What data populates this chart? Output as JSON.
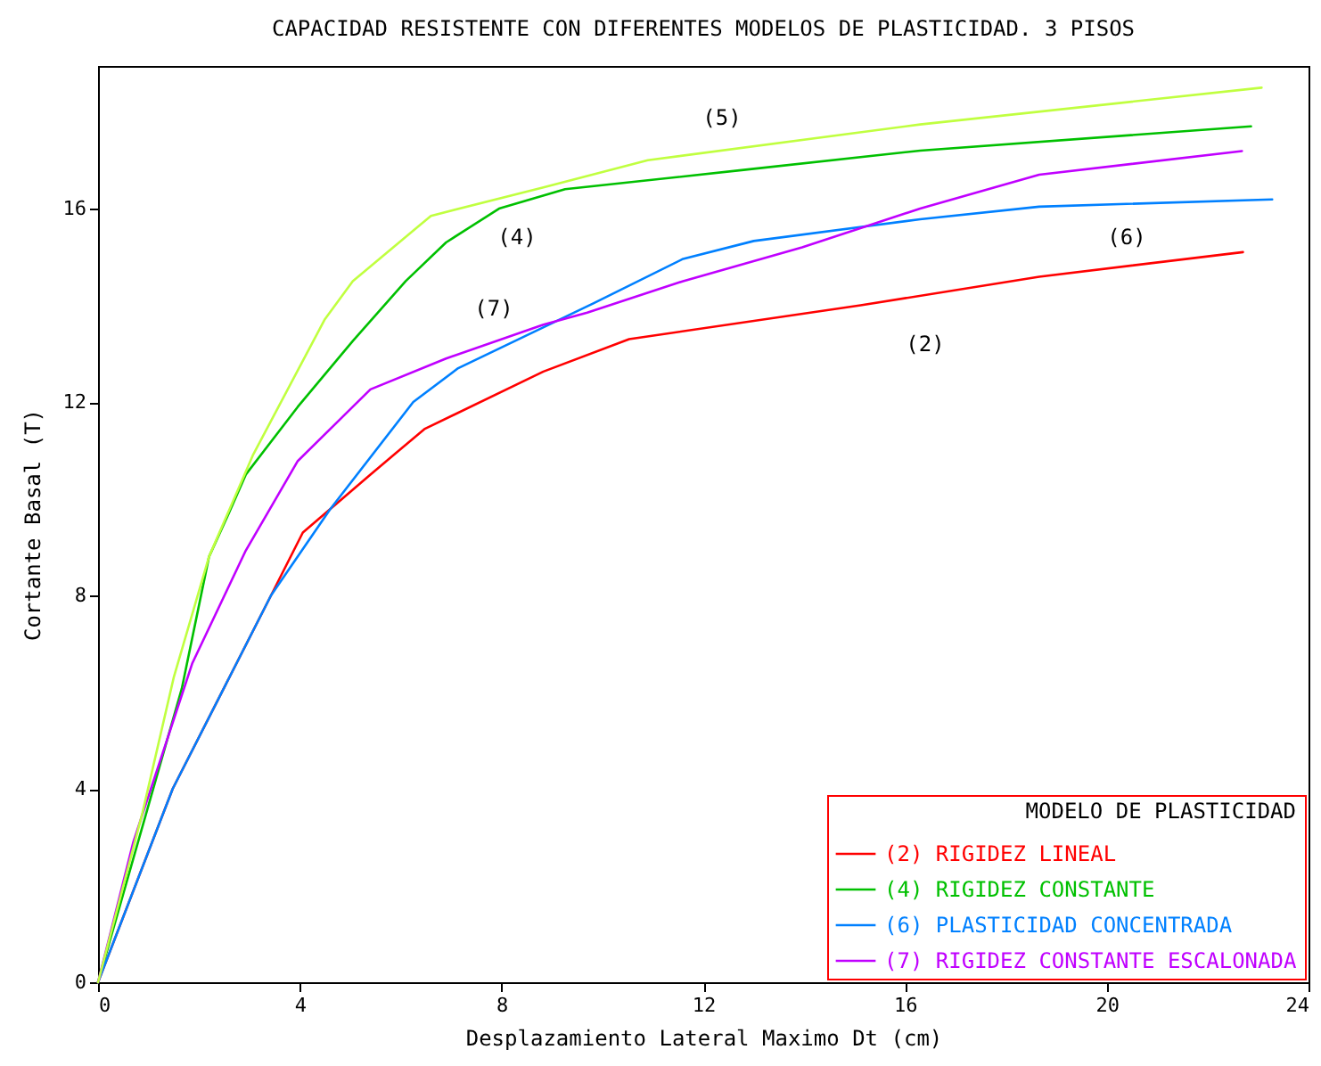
{
  "chart_data": {
    "type": "line",
    "title": "CAPACIDAD RESISTENTE CON DIFERENTES MODELOS DE PLASTICIDAD. 3 PISOS",
    "xlabel": "Desplazamiento Lateral Maximo Dt (cm)",
    "ylabel": "Cortante Basal (T)",
    "legend_title": "MODELO DE PLASTICIDAD",
    "legend": "bottom right",
    "grid": false,
    "marker": "none",
    "line_style": "solid",
    "xlim": [
      0,
      24
    ],
    "xticks": [
      0,
      4,
      8,
      12,
      16,
      20,
      24
    ],
    "ylim": [
      0,
      18.95
    ],
    "yticks": [
      0,
      4,
      8,
      12,
      16
    ],
    "series": [
      {
        "name": "(2) RIGIDEZ LINEAL",
        "color": "#ff0000",
        "x": [
          0,
          1.48,
          3.43,
          4.06,
          5.4,
          6.47,
          8.83,
          10.53,
          15.12,
          18.66,
          22.7
        ],
        "values": [
          0,
          4.0,
          8.0,
          9.3,
          10.5,
          11.44,
          12.63,
          13.3,
          14.0,
          14.59,
          15.1
        ]
      },
      {
        "name": "(4) RIGIDEZ CONSTANTE",
        "color": "#00c000",
        "x": [
          0,
          1.66,
          2.2,
          2.58,
          2.93,
          3.96,
          5.05,
          6.1,
          6.9,
          7.95,
          9.26,
          12.8,
          16.3,
          22.86
        ],
        "values": [
          0,
          6.07,
          8.8,
          9.67,
          10.5,
          11.9,
          13.26,
          14.5,
          15.3,
          16.0,
          16.4,
          16.8,
          17.2,
          17.7
        ]
      },
      {
        "name": "(6) PLASTICIDAD CONCENTRADA",
        "color": "#0080ff",
        "x": [
          0,
          1.48,
          3.43,
          4.6,
          6.25,
          7.14,
          9.82,
          11.6,
          13.0,
          16.3,
          18.66,
          23.28
        ],
        "values": [
          0,
          4.0,
          8.0,
          9.78,
          12.0,
          12.7,
          14.04,
          14.96,
          15.33,
          15.78,
          16.04,
          16.19
        ]
      },
      {
        "name": "(7) RIGIDEZ CONSTANTE ESCALONADA",
        "color": "#c000ff",
        "x": [
          0,
          0.7,
          1.87,
          2.93,
          3.96,
          5.4,
          6.9,
          8.83,
          9.7,
          11.6,
          13.96,
          16.3,
          18.66,
          22.68
        ],
        "values": [
          0,
          2.9,
          6.6,
          8.93,
          10.78,
          12.26,
          12.9,
          13.6,
          13.85,
          14.5,
          15.2,
          16.0,
          16.7,
          17.19
        ]
      },
      {
        "color": "#c0ff40",
        "x": [
          0,
          0.88,
          1.5,
          2.2,
          3.07,
          4.49,
          5.05,
          6.6,
          8.83,
          10.9,
          16.3,
          23.07
        ],
        "values": [
          0,
          3.5,
          6.3,
          8.8,
          10.9,
          13.7,
          14.5,
          15.85,
          16.44,
          17.0,
          17.74,
          18.5
        ]
      }
    ],
    "annotations": [
      "(5)",
      "(4)",
      "(7)",
      "(6)",
      "(2)"
    ]
  }
}
